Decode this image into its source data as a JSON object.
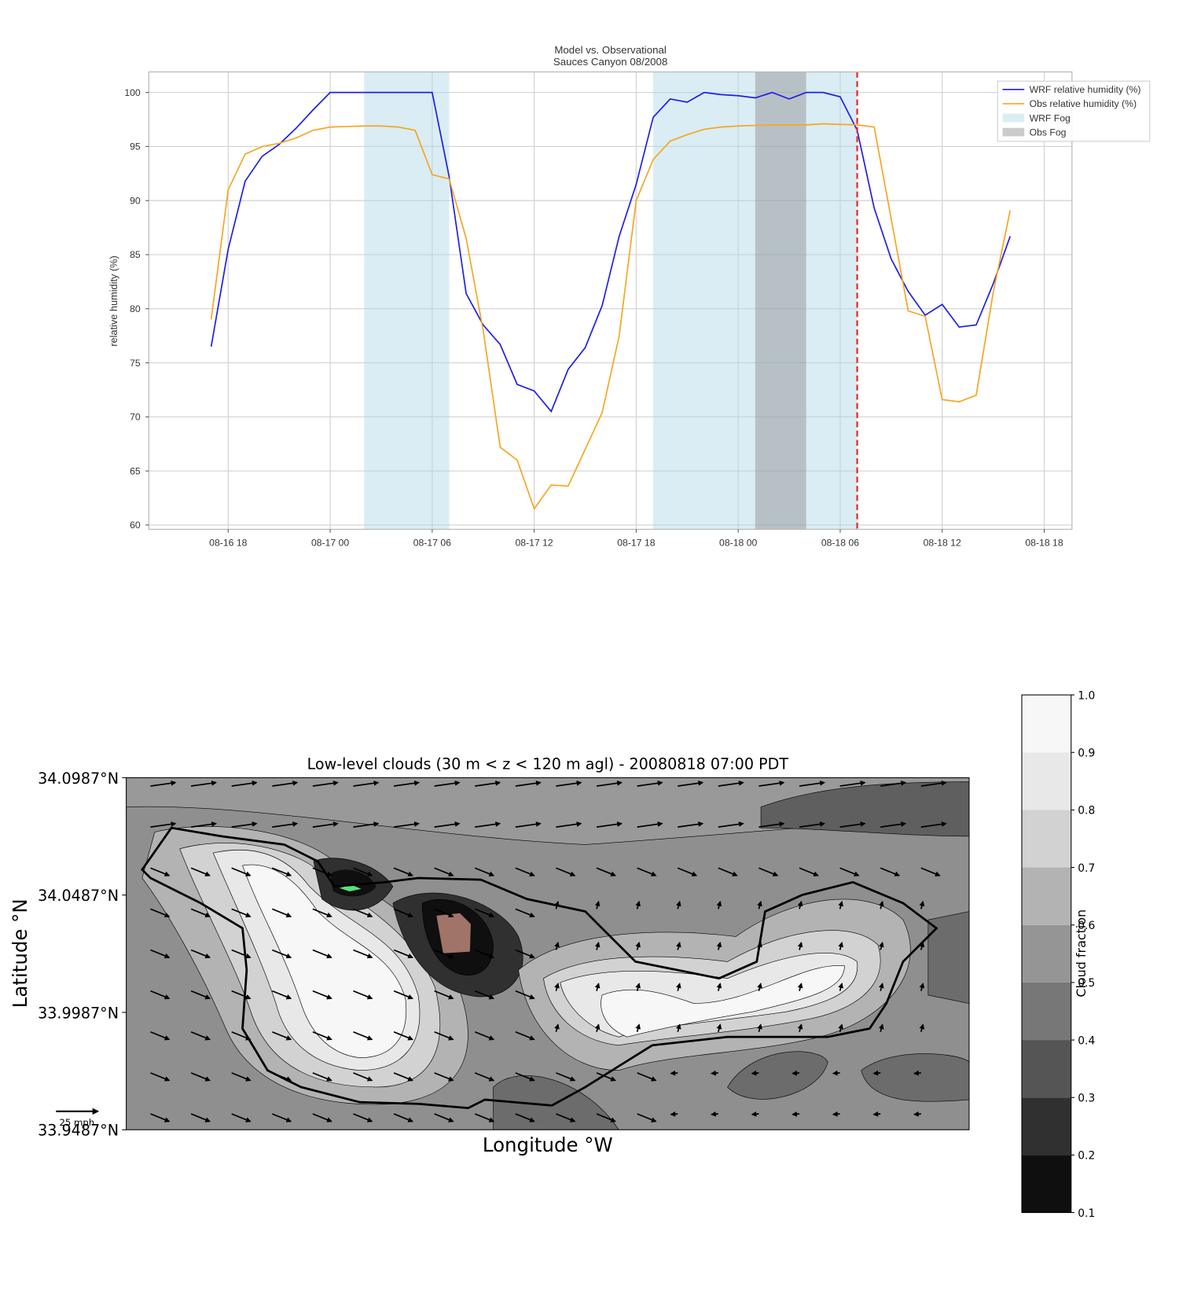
{
  "chart_data": [
    {
      "type": "line",
      "title": "Model vs. Observational",
      "subtitle": "Sauces Canyon 08/2008",
      "ylabel": "relative humidity (%)",
      "x": [
        "08-16 17",
        "08-16 18",
        "08-16 19",
        "08-16 20",
        "08-16 21",
        "08-16 22",
        "08-16 23",
        "08-17 00",
        "08-17 01",
        "08-17 02",
        "08-17 03",
        "08-17 04",
        "08-17 05",
        "08-17 06",
        "08-17 07",
        "08-17 08",
        "08-17 09",
        "08-17 10",
        "08-17 11",
        "08-17 12",
        "08-17 13",
        "08-17 14",
        "08-17 15",
        "08-17 16",
        "08-17 17",
        "08-17 18",
        "08-17 19",
        "08-17 20",
        "08-17 21",
        "08-17 22",
        "08-17 23",
        "08-18 00",
        "08-18 01",
        "08-18 02",
        "08-18 03",
        "08-18 04",
        "08-18 05",
        "08-18 06",
        "08-18 07",
        "08-18 08",
        "08-18 09",
        "08-18 10",
        "08-18 11",
        "08-18 12",
        "08-18 13",
        "08-18 14",
        "08-18 15",
        "08-18 16"
      ],
      "series": [
        {
          "name": "WRF relative humidity (%)",
          "color": "#1f1fe6",
          "values": [
            76.5,
            85.5,
            91.8,
            94.1,
            95.2,
            96.7,
            98.4,
            100,
            100,
            100,
            100,
            100,
            100,
            100,
            92.2,
            81.4,
            78.5,
            76.7,
            73.0,
            72.4,
            70.5,
            74.4,
            76.4,
            80.3,
            86.7,
            91.5,
            97.7,
            99.4,
            99.1,
            100,
            99.8,
            99.7,
            99.5,
            100,
            99.4,
            100,
            100,
            99.6,
            96.5,
            89.3,
            84.6,
            81.6,
            79.4,
            80.4,
            78.3,
            78.5,
            82.3,
            86.7
          ]
        },
        {
          "name": "Obs relative humidity (%)",
          "color": "#f5a623",
          "values": [
            79.0,
            91.0,
            94.3,
            95.0,
            95.3,
            95.8,
            96.5,
            96.8,
            96.85,
            96.9,
            96.9,
            96.8,
            96.5,
            92.4,
            92.0,
            86.5,
            78.0,
            67.2,
            66.0,
            61.5,
            63.7,
            63.6,
            67.0,
            70.4,
            77.5,
            90.0,
            93.8,
            95.5,
            96.1,
            96.6,
            96.8,
            96.9,
            96.95,
            97,
            97,
            97,
            97.1,
            97.05,
            97,
            96.8,
            88.3,
            79.8,
            79.3,
            71.6,
            71.4,
            72.0,
            81.5,
            89.1
          ]
        }
      ],
      "spans": [
        {
          "name": "WRF Fog",
          "color": "#add8e6",
          "alpha": 0.45,
          "ranges": [
            [
              "08-17 02",
              "08-17 07"
            ],
            [
              "08-17 19",
              "08-18 07"
            ]
          ]
        },
        {
          "name": "Obs Fog",
          "color": "#8c8c8c",
          "alpha": 0.45,
          "ranges": [
            [
              "08-18 01",
              "08-18 04"
            ]
          ]
        }
      ],
      "vline": "08-18 07",
      "vline_color": "#e8302f",
      "xlim": [
        "08-16 13:20",
        "08-18 19:38"
      ],
      "xticks": [
        "08-16 18",
        "08-17 00",
        "08-17 06",
        "08-17 12",
        "08-17 18",
        "08-18 00",
        "08-18 06",
        "08-18 12",
        "08-18 18"
      ],
      "ylim": [
        59.6,
        101.9
      ],
      "yticks": [
        60,
        65,
        70,
        75,
        80,
        85,
        90,
        95,
        100
      ],
      "grid": true,
      "legend": "upper right"
    },
    {
      "type": "contour",
      "title": "Low-level clouds (30 m < z < 120 m agl) - 20080818 07:00 PDT",
      "xlabel": "Longitude °W",
      "ylabel": "Latitude °N",
      "ylim": [
        33.9487,
        34.0987
      ],
      "yticks": [
        {
          "value": 33.9487,
          "label": "33.9487°N"
        },
        {
          "value": 33.9987,
          "label": "33.9987°N"
        },
        {
          "value": 34.0487,
          "label": "34.0487°N"
        },
        {
          "value": 34.0987,
          "label": "34.0987°N"
        }
      ],
      "quiver_key": "25 mph",
      "colorbar": {
        "label": "Cloud fraction",
        "lim": [
          0.1,
          1.0
        ],
        "ticks": [
          0.1,
          0.2,
          0.3,
          0.4,
          0.5,
          0.6,
          0.7,
          0.8,
          0.9,
          {
            "value": 1,
            "label": "1.0"
          }
        ],
        "colors": [
          "#0f0f0f",
          "#303030",
          "#555555",
          "#777777",
          "#959595",
          "#b3b3b3",
          "#d2d2d2",
          "#e8e8e8",
          "#f7f7f7"
        ]
      }
    }
  ]
}
